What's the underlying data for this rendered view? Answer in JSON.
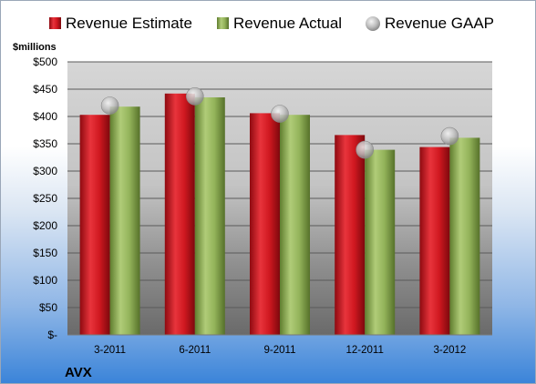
{
  "chart_data": {
    "type": "bar",
    "categories": [
      "3-2011",
      "6-2011",
      "9-2011",
      "12-2011",
      "3-2012"
    ],
    "series": [
      {
        "name": "Revenue Estimate",
        "values": [
          403,
          442,
          406,
          366,
          344
        ],
        "color": "#c8141e",
        "style": "bar"
      },
      {
        "name": "Revenue Actual",
        "values": [
          418,
          435,
          403,
          339,
          361
        ],
        "color": "#8fb052",
        "style": "bar"
      },
      {
        "name": "Revenue GAAP",
        "values": [
          420,
          437,
          405,
          339,
          364
        ],
        "color": "#b9b9b9",
        "style": "marker"
      }
    ],
    "ylabel": "$millions",
    "ylim": [
      0,
      500
    ],
    "yticks": [
      0,
      50,
      100,
      150,
      200,
      250,
      300,
      350,
      400,
      450,
      500
    ],
    "ytick_labels": [
      "$-",
      "$50",
      "$100",
      "$150",
      "$200",
      "$250",
      "$300",
      "$350",
      "$400",
      "$450",
      "$500"
    ],
    "grid": true,
    "legend_position": "top",
    "company_label": "AVX"
  }
}
